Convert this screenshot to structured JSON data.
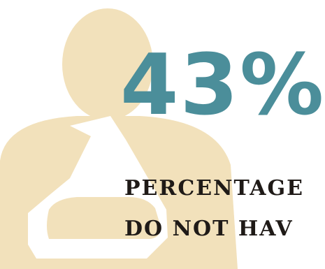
{
  "colors": {
    "figure": "#f2e1bb",
    "sling": "#ffffff",
    "accent": "#4b8e9a",
    "text": "#1f1a17",
    "background": "#ffffff"
  },
  "illustration": {
    "icon": "person-arm-sling-icon"
  },
  "stat": {
    "value": "43%"
  },
  "caption": {
    "line1": "PERCENTAGE",
    "line2": "DO NOT HAV"
  }
}
